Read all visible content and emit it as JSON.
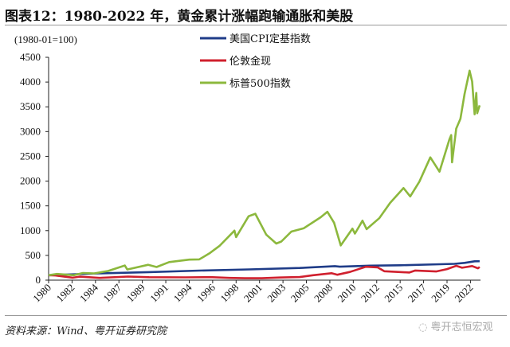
{
  "title": "图表12：1980-2022 年，黄金累计涨幅跑输通胀和美股",
  "source": "资料来源：Wind、粤开证券研究院",
  "watermark": "粤开志恒宏观",
  "chart_data": {
    "type": "line",
    "unit_label": "(1980-01=100)",
    "ylim": [
      0,
      4500
    ],
    "yticks": [
      0,
      500,
      1000,
      1500,
      2000,
      2500,
      3000,
      3500,
      4000,
      4500
    ],
    "xlim": [
      "1980-01",
      "2022-12"
    ],
    "xtick_labels": [
      "1980",
      "1982",
      "1984",
      "1987",
      "1989",
      "1991",
      "1994",
      "1996",
      "1998",
      "2001",
      "2003",
      "2005",
      "2008",
      "2010",
      "2012",
      "2015",
      "2017",
      "2019",
      "2022"
    ],
    "grid": false,
    "legend_position": "top-center",
    "series": [
      {
        "name": "美国CPI定基指数",
        "color": "#1f3c88",
        "points": [
          [
            "1980-01",
            100
          ],
          [
            "1985-01",
            136
          ],
          [
            "1990-01",
            163
          ],
          [
            "1995-01",
            193
          ],
          [
            "2000-01",
            217
          ],
          [
            "2005-01",
            246
          ],
          [
            "2008-07",
            283
          ],
          [
            "2009-01",
            271
          ],
          [
            "2012-01",
            292
          ],
          [
            "2015-01",
            301
          ],
          [
            "2019-01",
            322
          ],
          [
            "2020-06",
            329
          ],
          [
            "2021-06",
            349
          ],
          [
            "2022-06",
            381
          ],
          [
            "2022-12",
            383
          ]
        ]
      },
      {
        "name": "伦敦金现",
        "color": "#d0202e",
        "points": [
          [
            "1980-01",
            100
          ],
          [
            "1980-09",
            95
          ],
          [
            "1982-06",
            50
          ],
          [
            "1983-02",
            70
          ],
          [
            "1985-02",
            45
          ],
          [
            "1987-12",
            72
          ],
          [
            "1990-01",
            60
          ],
          [
            "1993-08",
            57
          ],
          [
            "1996-02",
            61
          ],
          [
            "1998-01",
            45
          ],
          [
            "1999-07",
            38
          ],
          [
            "2001-04",
            38
          ],
          [
            "2003-01",
            53
          ],
          [
            "2005-01",
            63
          ],
          [
            "2006-05",
            100
          ],
          [
            "2008-03",
            140
          ],
          [
            "2008-10",
            110
          ],
          [
            "2010-01",
            165
          ],
          [
            "2011-08",
            270
          ],
          [
            "2012-10",
            258
          ],
          [
            "2013-06",
            180
          ],
          [
            "2015-12",
            155
          ],
          [
            "2016-07",
            195
          ],
          [
            "2018-08",
            175
          ],
          [
            "2019-09",
            223
          ],
          [
            "2020-08",
            290
          ],
          [
            "2021-03",
            250
          ],
          [
            "2022-03",
            285
          ],
          [
            "2022-10",
            240
          ],
          [
            "2022-12",
            265
          ]
        ]
      },
      {
        "name": "标普500指数",
        "color": "#8cb83d",
        "points": [
          [
            "1980-01",
            100
          ],
          [
            "1980-11",
            125
          ],
          [
            "1982-07",
            100
          ],
          [
            "1983-06",
            145
          ],
          [
            "1984-07",
            135
          ],
          [
            "1985-12",
            185
          ],
          [
            "1987-08",
            295
          ],
          [
            "1987-11",
            215
          ],
          [
            "1989-12",
            310
          ],
          [
            "1990-10",
            265
          ],
          [
            "1992-01",
            365
          ],
          [
            "1994-01",
            415
          ],
          [
            "1995-01",
            420
          ],
          [
            "1996-01",
            540
          ],
          [
            "1997-01",
            690
          ],
          [
            "1998-07",
            1000
          ],
          [
            "1998-09",
            870
          ],
          [
            "1999-12",
            1290
          ],
          [
            "2000-08",
            1340
          ],
          [
            "2001-09",
            920
          ],
          [
            "2002-09",
            740
          ],
          [
            "2003-03",
            780
          ],
          [
            "2004-03",
            980
          ],
          [
            "2005-06",
            1050
          ],
          [
            "2007-02",
            1270
          ],
          [
            "2007-10",
            1380
          ],
          [
            "2008-06",
            1160
          ],
          [
            "2009-02",
            700
          ],
          [
            "2010-04",
            1040
          ],
          [
            "2010-07",
            940
          ],
          [
            "2011-04",
            1200
          ],
          [
            "2011-09",
            1030
          ],
          [
            "2012-12",
            1250
          ],
          [
            "2014-01",
            1560
          ],
          [
            "2015-05",
            1860
          ],
          [
            "2016-01",
            1690
          ],
          [
            "2016-12",
            1990
          ],
          [
            "2018-01",
            2480
          ],
          [
            "2018-12",
            2190
          ],
          [
            "2019-12",
            2850
          ],
          [
            "2020-02",
            2930
          ],
          [
            "2020-03",
            2380
          ],
          [
            "2020-08",
            3060
          ],
          [
            "2021-01",
            3260
          ],
          [
            "2021-06",
            3760
          ],
          [
            "2021-12",
            4230
          ],
          [
            "2022-03",
            4010
          ],
          [
            "2022-06",
            3350
          ],
          [
            "2022-08",
            3780
          ],
          [
            "2022-09",
            3370
          ],
          [
            "2022-12",
            3530
          ]
        ]
      }
    ]
  }
}
